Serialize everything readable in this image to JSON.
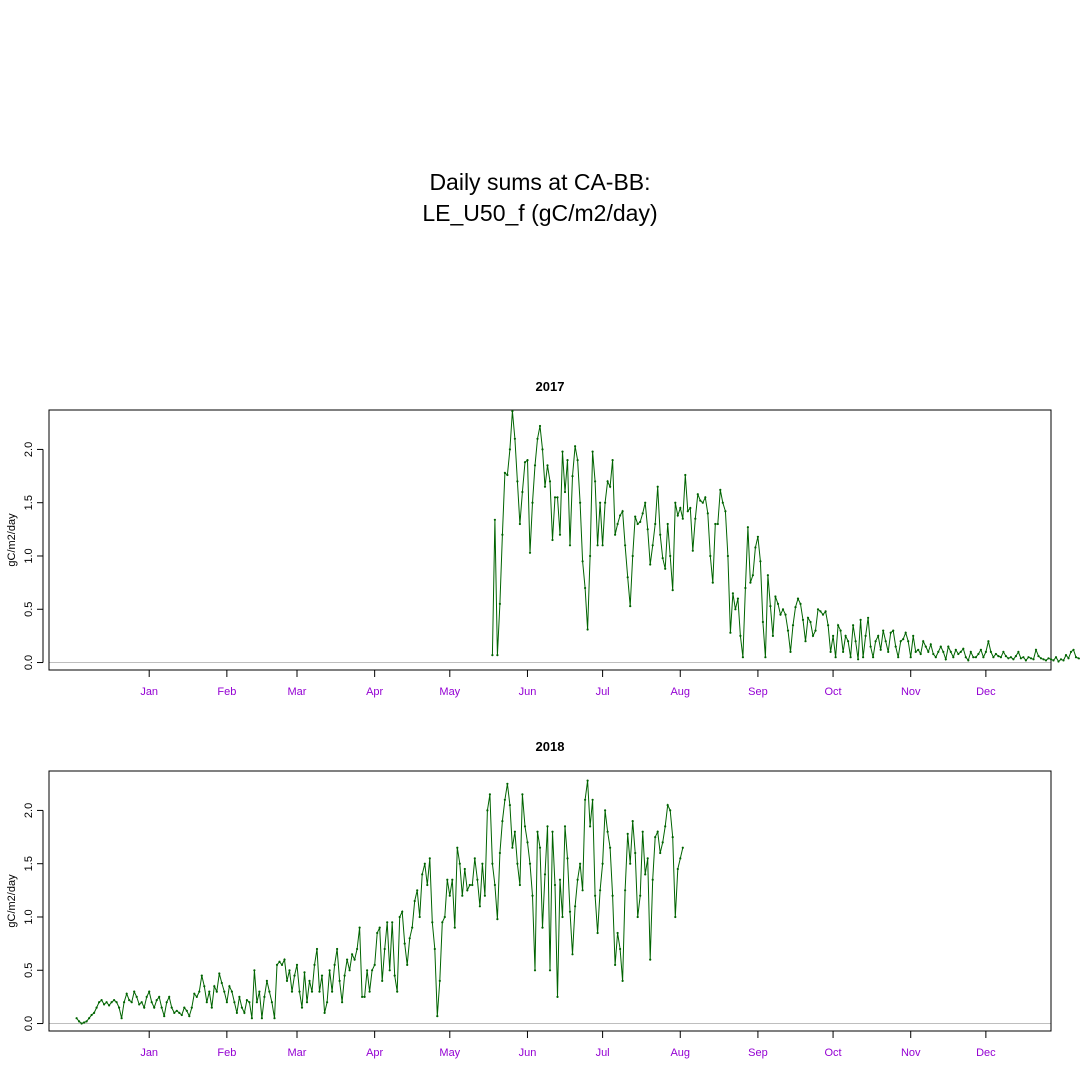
{
  "title_line1": "Daily sums at CA-BB:",
  "title_line2": "LE_U50_f (gC/m2/day)",
  "chart_data": [
    {
      "type": "line",
      "title": "2017",
      "ylabel": "gC/m2/day",
      "x_ticks": [
        "Jan",
        "Feb",
        "Mar",
        "Apr",
        "May",
        "Jun",
        "Jul",
        "Aug",
        "Sep",
        "Oct",
        "Nov",
        "Dec"
      ],
      "y_ticks": [
        "0.0",
        "0.5",
        "1.0",
        "1.5",
        "2.0"
      ],
      "ylim": [
        -0.07,
        2.37
      ],
      "xlim": [
        -25,
        375
      ],
      "reference_line_y": 0,
      "line_color": "#006400",
      "tick_label_color": "#9400d3",
      "start_day": 152,
      "values": [
        0.07,
        1.34,
        0.07,
        0.55,
        1.2,
        1.78,
        1.76,
        2.0,
        2.36,
        2.1,
        1.7,
        1.3,
        1.6,
        1.88,
        1.9,
        1.03,
        1.5,
        1.85,
        2.1,
        2.22,
        2.0,
        1.65,
        1.85,
        1.7,
        1.15,
        1.55,
        1.55,
        1.2,
        1.98,
        1.6,
        1.9,
        1.1,
        1.75,
        2.03,
        1.9,
        1.5,
        0.95,
        0.7,
        0.31,
        1.0,
        1.98,
        1.7,
        1.1,
        1.5,
        1.1,
        1.5,
        1.7,
        1.65,
        1.9,
        1.2,
        1.3,
        1.38,
        1.42,
        1.1,
        0.8,
        0.53,
        1.0,
        1.37,
        1.3,
        1.32,
        1.4,
        1.5,
        1.25,
        0.92,
        1.1,
        1.3,
        1.65,
        1.2,
        0.98,
        0.88,
        1.3,
        1.0,
        0.68,
        1.5,
        1.38,
        1.45,
        1.35,
        1.76,
        1.42,
        1.45,
        1.05,
        1.35,
        1.58,
        1.52,
        1.5,
        1.55,
        1.4,
        1.0,
        0.75,
        1.3,
        1.3,
        1.62,
        1.5,
        1.42,
        1.0,
        0.28,
        0.65,
        0.5,
        0.6,
        0.25,
        0.05,
        0.7,
        1.27,
        0.75,
        0.82,
        1.08,
        1.18,
        0.95,
        0.38,
        0.05,
        0.82,
        0.53,
        0.25,
        0.62,
        0.55,
        0.45,
        0.5,
        0.45,
        0.3,
        0.1,
        0.35,
        0.52,
        0.6,
        0.55,
        0.4,
        0.2,
        0.42,
        0.38,
        0.25,
        0.3,
        0.5,
        0.48,
        0.45,
        0.48,
        0.35,
        0.1,
        0.25,
        0.05,
        0.35,
        0.3,
        0.1,
        0.25,
        0.2,
        0.05,
        0.35,
        0.2,
        0.03,
        0.4,
        0.05,
        0.25,
        0.42,
        0.15,
        0.05,
        0.2,
        0.25,
        0.12,
        0.3,
        0.2,
        0.1,
        0.28,
        0.3,
        0.15,
        0.05,
        0.2,
        0.22,
        0.28,
        0.2,
        0.05,
        0.25,
        0.1,
        0.12,
        0.08,
        0.2,
        0.15,
        0.1,
        0.17,
        0.08,
        0.05,
        0.1,
        0.15,
        0.1,
        0.03,
        0.15,
        0.1,
        0.05,
        0.12,
        0.08,
        0.1,
        0.13,
        0.05,
        0.02,
        0.1,
        0.05,
        0.05,
        0.08,
        0.12,
        0.05,
        0.1,
        0.2,
        0.1,
        0.05,
        0.08,
        0.06,
        0.05,
        0.1,
        0.06,
        0.04,
        0.05,
        0.03,
        0.06,
        0.1,
        0.04,
        0.05,
        0.02,
        0.05,
        0.04,
        0.03,
        0.12,
        0.06,
        0.04,
        0.03,
        0.02,
        0.04,
        0.03,
        0.02,
        0.05,
        0.01,
        0.03,
        0.02,
        0.07,
        0.04,
        0.1,
        0.12,
        0.05,
        0.04,
        0.03,
        0.02,
        0.02,
        0.03,
        0.01,
        0.02,
        0.05,
        0.08
      ]
    },
    {
      "type": "line",
      "title": "2018",
      "ylabel": "gC/m2/day",
      "x_ticks": [
        "Jan",
        "Feb",
        "Mar",
        "Apr",
        "May",
        "Jun",
        "Jul",
        "Aug",
        "Sep",
        "Oct",
        "Nov",
        "Dec"
      ],
      "y_ticks": [
        "0.0",
        "0.5",
        "1.0",
        "1.5",
        "2.0"
      ],
      "ylim": [
        -0.07,
        2.37
      ],
      "xlim": [
        -25,
        375
      ],
      "reference_line_y": 0,
      "line_color": "#006400",
      "tick_label_color": "#9400d3",
      "start_day": -14,
      "values": [
        0.05,
        0.02,
        0.0,
        0.01,
        0.02,
        0.05,
        0.08,
        0.1,
        0.15,
        0.2,
        0.22,
        0.18,
        0.2,
        0.17,
        0.2,
        0.22,
        0.2,
        0.15,
        0.05,
        0.2,
        0.28,
        0.22,
        0.2,
        0.3,
        0.25,
        0.18,
        0.2,
        0.15,
        0.25,
        0.3,
        0.2,
        0.15,
        0.22,
        0.25,
        0.15,
        0.07,
        0.2,
        0.25,
        0.15,
        0.1,
        0.12,
        0.1,
        0.08,
        0.15,
        0.12,
        0.07,
        0.15,
        0.28,
        0.25,
        0.3,
        0.45,
        0.35,
        0.2,
        0.3,
        0.15,
        0.35,
        0.3,
        0.47,
        0.38,
        0.3,
        0.2,
        0.35,
        0.3,
        0.2,
        0.1,
        0.25,
        0.15,
        0.1,
        0.22,
        0.2,
        0.05,
        0.5,
        0.2,
        0.3,
        0.05,
        0.25,
        0.4,
        0.3,
        0.2,
        0.05,
        0.55,
        0.58,
        0.55,
        0.6,
        0.4,
        0.5,
        0.3,
        0.45,
        0.55,
        0.3,
        0.15,
        0.48,
        0.2,
        0.4,
        0.3,
        0.55,
        0.7,
        0.3,
        0.45,
        0.1,
        0.2,
        0.5,
        0.3,
        0.55,
        0.7,
        0.4,
        0.2,
        0.45,
        0.6,
        0.5,
        0.65,
        0.6,
        0.7,
        0.9,
        0.25,
        0.25,
        0.5,
        0.3,
        0.5,
        0.55,
        0.85,
        0.9,
        0.4,
        0.7,
        0.95,
        0.5,
        0.95,
        0.45,
        0.3,
        1.0,
        1.05,
        0.75,
        0.55,
        0.8,
        0.9,
        1.15,
        1.25,
        1.0,
        1.4,
        1.5,
        1.3,
        1.55,
        0.95,
        0.7,
        0.07,
        0.4,
        0.95,
        1.0,
        1.35,
        1.2,
        1.35,
        0.9,
        1.65,
        1.5,
        1.2,
        1.45,
        1.25,
        1.3,
        1.3,
        1.55,
        1.35,
        1.1,
        1.5,
        1.2,
        2.0,
        2.15,
        1.5,
        1.3,
        0.98,
        1.6,
        1.9,
        2.1,
        2.25,
        2.05,
        1.65,
        1.8,
        1.5,
        1.3,
        2.15,
        1.85,
        1.7,
        1.5,
        1.2,
        0.5,
        1.8,
        1.65,
        0.9,
        1.4,
        1.85,
        0.5,
        1.8,
        1.3,
        0.25,
        1.35,
        1.0,
        1.85,
        1.55,
        1.05,
        0.65,
        1.1,
        1.35,
        1.5,
        1.25,
        2.1,
        2.28,
        1.85,
        2.1,
        1.2,
        0.85,
        1.25,
        1.5,
        2.0,
        1.8,
        1.65,
        1.2,
        0.55,
        0.85,
        0.7,
        0.4,
        1.25,
        1.78,
        1.5,
        1.9,
        1.6,
        1.0,
        1.2,
        1.8,
        1.4,
        1.55,
        0.6,
        1.35,
        1.75,
        1.8,
        1.6,
        1.7,
        1.85,
        2.05,
        2.0,
        1.75,
        1.0,
        1.45,
        1.55,
        1.65
      ]
    }
  ]
}
